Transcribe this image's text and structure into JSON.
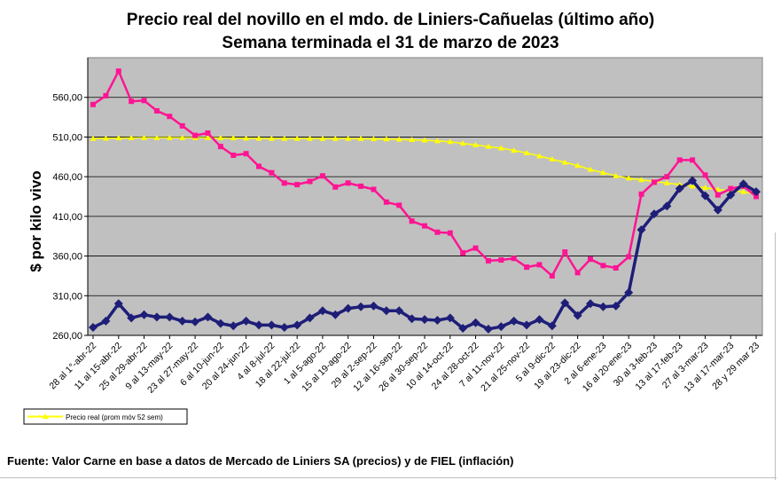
{
  "chart_data": {
    "type": "line",
    "title": "Precio real del novillo en el mdo. de Liniers-Cañuelas (último año)",
    "subtitle": "Semana terminada el 31 de marzo de 2023",
    "xlabel": "",
    "ylabel": "$ por kilo vivo",
    "ylim": [
      260,
      610
    ],
    "yticks": [
      "260,00",
      "310,00",
      "360,00",
      "410,00",
      "460,00",
      "510,00",
      "560,00"
    ],
    "grid": true,
    "legend_position": "bottom-left",
    "x_tick_labels": [
      "28 al 1°-abr-22",
      "11 al 15-abr-22",
      "25 al 29-abr-22",
      "9 al 13-may-22",
      "23 al 27-may-22",
      "6 al 10-jun-22",
      "20 al 24-jun-22",
      "4 al 8-jul-22",
      "18 al 22-jul-22",
      "1 al 5-ago-22",
      "15 al 19-ago-22",
      "29 al 2-sep-22",
      "12 al 16-sep-22",
      "26 al 30-sep-22",
      "10 al 14-oct-22",
      "24 al 28-oct-22",
      "7 al 11-nov-22",
      "21 al 25-nov-22",
      "5 al 9-dic-22",
      "19 al 23-dic-22",
      "2 al 6-ene-23",
      "16 al 20-ene-23",
      "30 al 3-feb-23",
      "13 al 17-feb-23",
      "27 al 3-mar-23",
      "13 al 17-mar-23",
      "28 y 29 mar 23"
    ],
    "series": [
      {
        "name": "",
        "color": "#ff1493",
        "marker": "square",
        "values": [
          551,
          562,
          593,
          555,
          556,
          543,
          536,
          524,
          512,
          515,
          498,
          487,
          489,
          473,
          465,
          452,
          450,
          454,
          461,
          447,
          452,
          448,
          444,
          428,
          424,
          404,
          398,
          390,
          389,
          364,
          370,
          354,
          355,
          357,
          346,
          349,
          335,
          365,
          339,
          356,
          348,
          345,
          359,
          438,
          453,
          460,
          481,
          481,
          462,
          437,
          445,
          448,
          435
        ]
      },
      {
        "name": "",
        "color": "#1e1e78",
        "marker": "diamond",
        "values": [
          270,
          278,
          300,
          282,
          286,
          283,
          283,
          278,
          277,
          283,
          275,
          272,
          278,
          273,
          273,
          270,
          273,
          282,
          291,
          286,
          294,
          296,
          297,
          291,
          291,
          281,
          280,
          279,
          282,
          269,
          276,
          268,
          271,
          278,
          273,
          280,
          272,
          301,
          285,
          300,
          296,
          297,
          314,
          393,
          413,
          423,
          445,
          455,
          436,
          418,
          437,
          451,
          441
        ]
      },
      {
        "name": "Precio real (prom móv 52 sem)",
        "color": "#ffff00",
        "marker": "triangle",
        "values": [
          508,
          508.3,
          508.6,
          508.8,
          509,
          509,
          509,
          509,
          509,
          509,
          508.8,
          508.6,
          508.4,
          508.2,
          508,
          508,
          508,
          508,
          508,
          508,
          508,
          507.8,
          507.6,
          507.4,
          507,
          506.5,
          506,
          505,
          504,
          502,
          500,
          498,
          496,
          493,
          490,
          486,
          482,
          478,
          474,
          469,
          465,
          461,
          458,
          456,
          454,
          452,
          450,
          448,
          446,
          444,
          442,
          441,
          438
        ]
      }
    ],
    "source": "Fuente: Valor Carne en base a datos de Mercado de Liniers SA (precios) y de FIEL (inflación)"
  }
}
